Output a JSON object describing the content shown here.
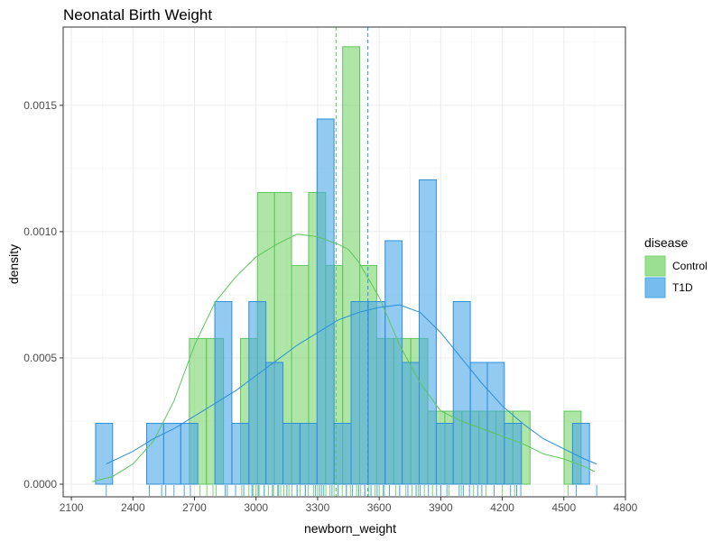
{
  "chart_data": {
    "type": "histogram",
    "title": "Neonatal Birth Weight",
    "xlabel": "newborn_weight",
    "ylabel": "density",
    "xlim": [
      2060,
      4800
    ],
    "ylim": [
      -5e-05,
      0.00181
    ],
    "x_ticks": [
      2100,
      2400,
      2700,
      3000,
      3300,
      3600,
      3900,
      4200,
      4500,
      4800
    ],
    "y_ticks": [
      0.0,
      0.0005,
      0.001,
      0.0015
    ],
    "y_tick_labels": [
      "0.0000",
      "0.0005",
      "0.0010",
      "0.0015"
    ],
    "grid": true,
    "bin_width": 83,
    "legend": {
      "title": "disease",
      "position": "right",
      "entries": [
        {
          "label": "Control",
          "color": "#7ad56e"
        },
        {
          "label": "T1D",
          "color": "#4aa6e8"
        }
      ]
    },
    "series": [
      {
        "name": "Control",
        "fill": "#7ad56e",
        "stroke": "#5cc75a",
        "mean": 3390,
        "bins": [
          {
            "x0": 2675,
            "density": 0.000577
          },
          {
            "x0": 2758,
            "density": 0.000577
          },
          {
            "x0": 2924,
            "density": 0.000577
          },
          {
            "x0": 3007,
            "density": 0.001155
          },
          {
            "x0": 3090,
            "density": 0.001155
          },
          {
            "x0": 3173,
            "density": 0.000866
          },
          {
            "x0": 3256,
            "density": 0.001155
          },
          {
            "x0": 3339,
            "density": 0.000866
          },
          {
            "x0": 3422,
            "density": 0.001732
          },
          {
            "x0": 3505,
            "density": 0.000866
          },
          {
            "x0": 3588,
            "density": 0.000577
          },
          {
            "x0": 3671,
            "density": 0.000577
          },
          {
            "x0": 3754,
            "density": 0.000577
          },
          {
            "x0": 3837,
            "density": 0.000289
          },
          {
            "x0": 3920,
            "density": 0.000289
          },
          {
            "x0": 4003,
            "density": 0.000289
          },
          {
            "x0": 4086,
            "density": 0.000289
          },
          {
            "x0": 4169,
            "density": 0.000289
          },
          {
            "x0": 4252,
            "density": 0.000289
          },
          {
            "x0": 4501,
            "density": 0.000289
          }
        ],
        "density_curve": [
          [
            2200,
            1e-05
          ],
          [
            2300,
            3e-05
          ],
          [
            2400,
            8e-05
          ],
          [
            2500,
            0.00017
          ],
          [
            2600,
            0.00033
          ],
          [
            2700,
            0.00055
          ],
          [
            2800,
            0.00072
          ],
          [
            2900,
            0.00082
          ],
          [
            3000,
            0.0009
          ],
          [
            3100,
            0.00095
          ],
          [
            3200,
            0.00099
          ],
          [
            3300,
            0.00098
          ],
          [
            3400,
            0.00095
          ],
          [
            3450,
            0.00093
          ],
          [
            3500,
            0.00088
          ],
          [
            3600,
            0.00074
          ],
          [
            3700,
            0.00055
          ],
          [
            3800,
            0.0004
          ],
          [
            3900,
            0.00029
          ],
          [
            4000,
            0.00025
          ],
          [
            4100,
            0.00022
          ],
          [
            4200,
            0.00019
          ],
          [
            4300,
            0.00016
          ],
          [
            4400,
            0.00012
          ],
          [
            4500,
            0.0001
          ],
          [
            4600,
            7e-05
          ],
          [
            4650,
            5e-05
          ]
        ],
        "rug": [
          2727,
          2760,
          2790,
          2805,
          2850,
          2900,
          2930,
          2965,
          2985,
          3000,
          3015,
          3040,
          3060,
          3085,
          3105,
          3120,
          3135,
          3160,
          3175,
          3200,
          3215,
          3240,
          3255,
          3280,
          3300,
          3320,
          3340,
          3360,
          3380,
          3400,
          3420,
          3440,
          3460,
          3490,
          3510,
          3530,
          3550,
          3580,
          3600,
          3625,
          3650,
          3680,
          3700,
          3730,
          3760,
          3790,
          3820,
          3860,
          3900,
          3940,
          4000,
          4060,
          4120,
          4200,
          4260,
          4520
        ]
      },
      {
        "name": "T1D",
        "fill": "#4aa6e8",
        "stroke": "#2c8fd8",
        "mean": 3545,
        "bins": [
          {
            "x0": 2218,
            "density": 0.000241
          },
          {
            "x0": 2467,
            "density": 0.000241
          },
          {
            "x0": 2550,
            "density": 0.000241
          },
          {
            "x0": 2633,
            "density": 0.000241
          },
          {
            "x0": 2799,
            "density": 0.000723
          },
          {
            "x0": 2882,
            "density": 0.000241
          },
          {
            "x0": 2965,
            "density": 0.000723
          },
          {
            "x0": 3048,
            "density": 0.000482
          },
          {
            "x0": 3131,
            "density": 0.000241
          },
          {
            "x0": 3214,
            "density": 0.000241
          },
          {
            "x0": 3297,
            "density": 0.001446
          },
          {
            "x0": 3380,
            "density": 0.000241
          },
          {
            "x0": 3463,
            "density": 0.000723
          },
          {
            "x0": 3546,
            "density": 0.000723
          },
          {
            "x0": 3629,
            "density": 0.000964
          },
          {
            "x0": 3712,
            "density": 0.000482
          },
          {
            "x0": 3795,
            "density": 0.001205
          },
          {
            "x0": 3878,
            "density": 0.000241
          },
          {
            "x0": 3961,
            "density": 0.000723
          },
          {
            "x0": 4044,
            "density": 0.000482
          },
          {
            "x0": 4127,
            "density": 0.000482
          },
          {
            "x0": 4210,
            "density": 0.000241
          },
          {
            "x0": 4542,
            "density": 0.000241
          }
        ],
        "density_curve": [
          [
            2270,
            8e-05
          ],
          [
            2400,
            0.00013
          ],
          [
            2500,
            0.00018
          ],
          [
            2600,
            0.00022
          ],
          [
            2700,
            0.00027
          ],
          [
            2800,
            0.00032
          ],
          [
            2900,
            0.00037
          ],
          [
            3000,
            0.00043
          ],
          [
            3100,
            0.00049
          ],
          [
            3200,
            0.00055
          ],
          [
            3300,
            0.0006
          ],
          [
            3400,
            0.00065
          ],
          [
            3500,
            0.00068
          ],
          [
            3600,
            0.0007
          ],
          [
            3700,
            0.00071
          ],
          [
            3800,
            0.00068
          ],
          [
            3900,
            0.0006
          ],
          [
            4000,
            0.0005
          ],
          [
            4100,
            0.0004
          ],
          [
            4200,
            0.00031
          ],
          [
            4300,
            0.00024
          ],
          [
            4400,
            0.00018
          ],
          [
            4500,
            0.00014
          ],
          [
            4600,
            0.0001
          ],
          [
            4660,
            8e-05
          ]
        ],
        "rug": [
          2270,
          2480,
          2540,
          2560,
          2600,
          2650,
          2680,
          2850,
          2860,
          2900,
          2940,
          2980,
          3010,
          3040,
          3080,
          3110,
          3150,
          3200,
          3240,
          3290,
          3310,
          3330,
          3370,
          3400,
          3440,
          3470,
          3500,
          3530,
          3560,
          3590,
          3620,
          3650,
          3700,
          3740,
          3780,
          3800,
          3840,
          3880,
          3900,
          3930,
          3990,
          4010,
          4040,
          4080,
          4100,
          4160,
          4240,
          4270,
          4290,
          4560,
          4660
        ]
      }
    ]
  }
}
